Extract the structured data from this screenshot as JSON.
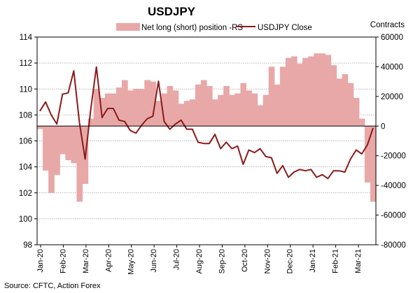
{
  "chart_data": {
    "type": "line",
    "title": "USDJPY",
    "source": "Source: CFTC, Action Forex",
    "right_axis_title": "Contracts",
    "y_left": {
      "min": 98,
      "max": 114,
      "step": 2
    },
    "y_right": {
      "min": -80000,
      "max": 60000,
      "step": 20000
    },
    "grid": true,
    "legend_position": "top",
    "colors": {
      "area": "#e8a8a8",
      "line": "#8b1a1a",
      "grid": "#9a9a9a"
    },
    "left_ticks": [
      "98",
      "100",
      "102",
      "104",
      "106",
      "108",
      "110",
      "112",
      "114"
    ],
    "right_ticks": [
      "-80000",
      "-60000",
      "-40000",
      "-20000",
      "0",
      "20000",
      "40000",
      "60000"
    ],
    "x_labels": [
      "Jan-20",
      "Feb-20",
      "Mar-20",
      "Apr-20",
      "May-20",
      "Jun-20",
      "Jul-20",
      "Aug-20",
      "Sep-20",
      "Oct-20",
      "Nov-20",
      "Dec-20",
      "Jan-21",
      "Feb-21",
      "Mar-21"
    ],
    "series": [
      {
        "name": "Net long (short) position -RS",
        "axis": "right",
        "kind": "area",
        "values": [
          -2000,
          -30000,
          -45000,
          -33000,
          -19000,
          -23000,
          -25000,
          -51000,
          -39000,
          5000,
          25000,
          19000,
          22000,
          22000,
          26000,
          31000,
          24000,
          25000,
          25000,
          31000,
          30000,
          17000,
          22000,
          27000,
          24000,
          15000,
          17000,
          18000,
          28000,
          31000,
          27000,
          18000,
          21000,
          27000,
          21000,
          22000,
          29000,
          24000,
          22000,
          14000,
          21000,
          40000,
          28000,
          40000,
          46000,
          47000,
          42000,
          46000,
          47000,
          49000,
          49000,
          48000,
          41000,
          32000,
          35000,
          29000,
          19000,
          5000,
          -38000,
          -51000
        ]
      },
      {
        "name": "USDJPY Close",
        "axis": "left",
        "kind": "line",
        "values": [
          108.3,
          109.0,
          108.0,
          107.3,
          109.6,
          109.7,
          111.4,
          107.4,
          104.6,
          108.4,
          111.7,
          107.8,
          108.5,
          108.5,
          107.6,
          107.5,
          106.8,
          106.6,
          107.2,
          107.7,
          107.9,
          110.6,
          107.5,
          106.9,
          107.3,
          107.6,
          106.9,
          106.9,
          105.9,
          105.8,
          105.8,
          106.5,
          105.4,
          105.9,
          105.4,
          105.6,
          104.2,
          105.3,
          105.1,
          105.4,
          104.8,
          104.7,
          103.5,
          104.1,
          103.2,
          103.6,
          103.8,
          103.7,
          103.8,
          103.2,
          103.4,
          103.1,
          103.7,
          103.7,
          103.6,
          104.6,
          105.3,
          105.0,
          105.7,
          107.0
        ]
      }
    ]
  }
}
